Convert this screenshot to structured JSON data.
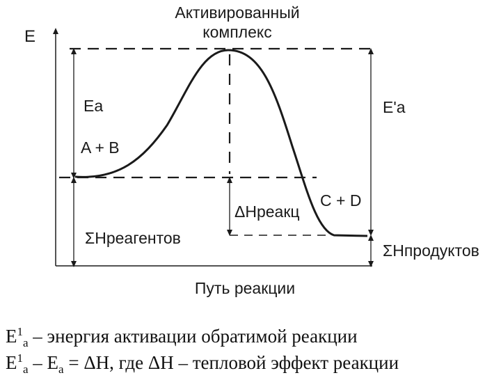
{
  "diagram": {
    "axis_y_label": "E",
    "axis_x_label": "Путь реакции",
    "peak_label_line1": "Активированный",
    "peak_label_line2": "комплекс",
    "ea_label": "Ea",
    "ea_reverse_label": "E'a",
    "reactants_label": "A + B",
    "products_label": "C + D",
    "delta_h_label": "ΔHреакц",
    "sum_h_reactants_label": "ΣHреагентов",
    "sum_h_products_label": "ΣHпродуктов"
  },
  "caption": {
    "line1": {
      "e": "E",
      "sup": "1",
      "sub": "a",
      "text": " – энергия активации обратимой реакции"
    },
    "line2": {
      "e": "E",
      "sup": "1",
      "sub": "a",
      "mid": " – E",
      "sub2": "a",
      "text": " = ΔH, где ΔH – тепловой эффект реакции"
    }
  }
}
